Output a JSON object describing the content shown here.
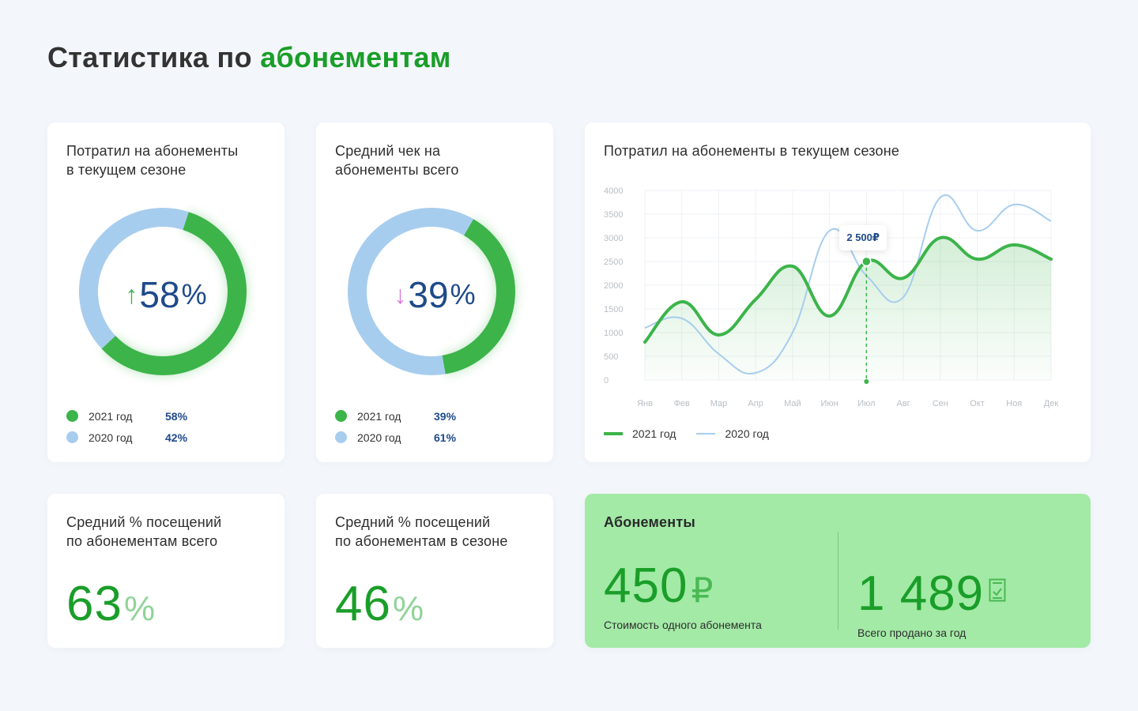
{
  "page": {
    "title_prefix": "Статистика по",
    "title_accent": "абонементам"
  },
  "colors": {
    "green": "#3cb44a",
    "green_dark": "#1a9e29",
    "blue_light": "#a7cdee",
    "text_blue": "#1e4a8a",
    "card_green_bg": "#a3eaa6"
  },
  "card_spent": {
    "title_line1": "Потратил на абонементы",
    "title_line2": "в текущем сезоне",
    "arrow": "↑",
    "arrow_icon": "arrow-up-icon",
    "value": "58",
    "unit": "%",
    "legend": [
      {
        "label": "2021 год",
        "value": "58%",
        "color": "#3cb44a"
      },
      {
        "label": "2020 год",
        "value": "42%",
        "color": "#a7cdee"
      }
    ]
  },
  "card_avg_check": {
    "title_line1": "Средний чек на",
    "title_line2": "абонементы всего",
    "arrow": "↓",
    "arrow_icon": "arrow-down-icon",
    "value": "39",
    "unit": "%",
    "legend": [
      {
        "label": "2021 год",
        "value": "39%",
        "color": "#3cb44a"
      },
      {
        "label": "2020 год",
        "value": "61%",
        "color": "#a7cdee"
      }
    ]
  },
  "card_line": {
    "title": "Потратил на абонементы в текущем сезоне",
    "tooltip": "2 500₽",
    "legend": [
      {
        "label": "2021 год",
        "style": "thick"
      },
      {
        "label": "2020 год",
        "style": "thin"
      }
    ]
  },
  "card_visits_total": {
    "title_line1": "Средний % посещений",
    "title_line2": "по абонементам всего",
    "value": "63",
    "unit": "%"
  },
  "card_visits_season": {
    "title_line1": "Средний % посещений",
    "title_line2": "по абонементам в сезоне",
    "value": "46",
    "unit": "%"
  },
  "card_subscriptions": {
    "title": "Абонементы",
    "price_value": "450",
    "price_unit": "₽",
    "price_caption": "Стоимость одного абонемента",
    "sold_value": "1 489",
    "sold_icon": "receipt-check-icon",
    "sold_caption": "Всего продано за год"
  },
  "chart_data": [
    {
      "type": "pie",
      "title": "Потратил на абонементы в текущем сезоне",
      "categories": [
        "2021 год",
        "2020 год"
      ],
      "values": [
        58,
        42
      ],
      "style": "donut"
    },
    {
      "type": "pie",
      "title": "Средний чек на абонементы всего",
      "categories": [
        "2021 год",
        "2020 год"
      ],
      "values": [
        39,
        61
      ],
      "style": "donut"
    },
    {
      "type": "line",
      "title": "Потратил на абонементы в текущем сезоне",
      "categories": [
        "Янв",
        "Фев",
        "Мар",
        "Апр",
        "Май",
        "Июн",
        "Июл",
        "Авг",
        "Сен",
        "Окт",
        "Ноя",
        "Дек"
      ],
      "series": [
        {
          "name": "2021 год",
          "values": [
            800,
            1650,
            950,
            1700,
            2400,
            1350,
            2500,
            2150,
            3000,
            2550,
            2850,
            2550
          ]
        },
        {
          "name": "2020 год",
          "values": [
            1100,
            1300,
            550,
            150,
            1000,
            3150,
            2200,
            1750,
            3850,
            3150,
            3700,
            3350
          ]
        }
      ],
      "y_ticks": [
        0,
        500,
        1000,
        1500,
        2000,
        2500,
        3000,
        3500,
        4000
      ],
      "ylim": [
        0,
        4000
      ],
      "highlight": {
        "category": "Июл",
        "series": "2021 год",
        "value": 2500
      },
      "grid": true,
      "legend": "bottom-left"
    }
  ]
}
